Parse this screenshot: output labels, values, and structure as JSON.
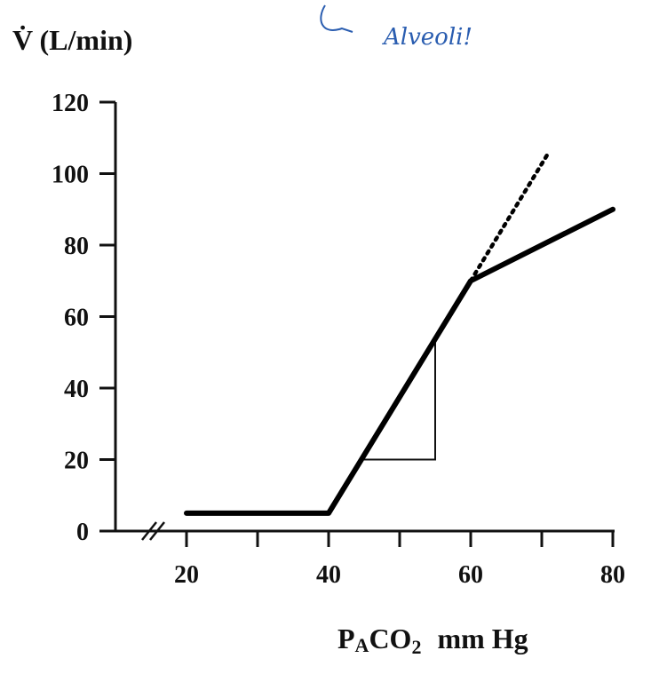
{
  "chart_data": {
    "type": "line",
    "ylabel": "V̇ (L/min)",
    "xlabel_main": "P",
    "xlabel_sub_a": "A",
    "xlabel_mid": "CO",
    "xlabel_sub_2": "2",
    "xlabel_unit": "mm Hg",
    "annotation": "Alveoli!",
    "ylim": [
      0,
      120
    ],
    "xlim": [
      20,
      80
    ],
    "y_ticks": [
      0,
      20,
      40,
      60,
      80,
      100,
      120
    ],
    "y_tick_labels": [
      "0",
      "20",
      "40",
      "60",
      "80",
      "100",
      "120"
    ],
    "x_ticks": [
      20,
      40,
      60,
      80
    ],
    "x_tick_labels": [
      "20",
      "40",
      "60",
      "80"
    ],
    "series": [
      {
        "style": "solid",
        "points": [
          [
            20,
            5
          ],
          [
            40,
            5
          ],
          [
            60,
            70
          ],
          [
            80,
            90
          ]
        ]
      },
      {
        "style": "dotted",
        "points": [
          [
            60,
            70
          ],
          [
            71,
            106
          ]
        ]
      }
    ],
    "slope_triangle": {
      "points": [
        [
          45,
          20
        ],
        [
          55,
          20
        ],
        [
          55,
          53
        ]
      ]
    },
    "axis_break": true
  }
}
